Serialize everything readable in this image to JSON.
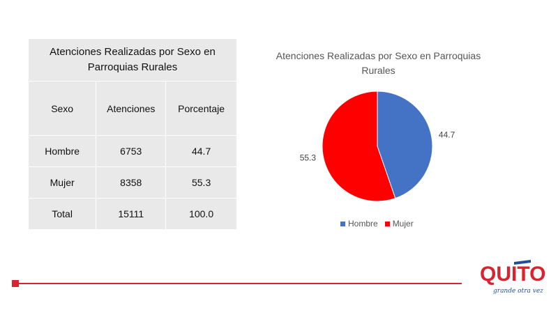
{
  "table": {
    "title": "Atenciones Realizadas por Sexo en Parroquias Rurales",
    "headers": [
      "Sexo",
      "Atenciones",
      "Porcentaje"
    ],
    "rows": [
      [
        "Hombre",
        "6753",
        "44.7"
      ],
      [
        "Mujer",
        "8358",
        "55.3"
      ],
      [
        "Total",
        "15111",
        "100.0"
      ]
    ]
  },
  "chart_data": {
    "type": "pie",
    "title": "Atenciones Realizadas por Sexo en Parroquias Rurales",
    "categories": [
      "Hombre",
      "Mujer"
    ],
    "values": [
      44.7,
      55.3
    ],
    "colors": [
      "#4472c4",
      "#ff0000"
    ],
    "legend": "bottom"
  },
  "logo": {
    "text": "QUITO",
    "tagline": "grande otra vez",
    "colors": [
      "#d9232e",
      "#1f4e9c"
    ]
  },
  "colors": {
    "accent": "#d9232e"
  }
}
